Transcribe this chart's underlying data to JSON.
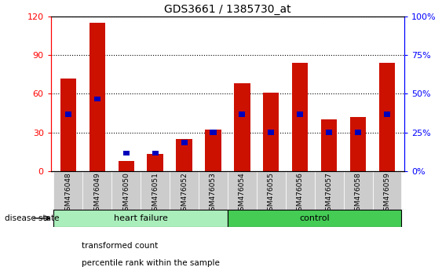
{
  "title": "GDS3661 / 1385730_at",
  "samples": [
    "GSM476048",
    "GSM476049",
    "GSM476050",
    "GSM476051",
    "GSM476052",
    "GSM476053",
    "GSM476054",
    "GSM476055",
    "GSM476056",
    "GSM476057",
    "GSM476058",
    "GSM476059"
  ],
  "red_values": [
    72,
    115,
    8,
    13,
    25,
    32,
    68,
    61,
    84,
    40,
    42,
    84
  ],
  "blue_heights": [
    44,
    56,
    14,
    14,
    22,
    30,
    44,
    30,
    44,
    30,
    30,
    44
  ],
  "blue_bar_height": 4,
  "ylim_left": [
    0,
    120
  ],
  "ylim_right": [
    0,
    100
  ],
  "yticks_left": [
    0,
    30,
    60,
    90,
    120
  ],
  "yticks_right": [
    0,
    25,
    50,
    75,
    100
  ],
  "ytick_labels_right": [
    "0%",
    "25%",
    "50%",
    "75%",
    "100%"
  ],
  "bar_color_red": "#cc1100",
  "bar_color_blue": "#0000bb",
  "hf_bg": "#aaeebb",
  "ctrl_bg": "#44cc55",
  "tick_bg": "#cccccc",
  "legend_red_label": "transformed count",
  "legend_blue_label": "percentile rank within the sample",
  "disease_state_label": "disease state",
  "hf_label": "heart failure",
  "ctrl_label": "control",
  "bar_width": 0.55,
  "blue_bar_width": 0.22,
  "n_hf": 6,
  "n_ctrl": 6
}
